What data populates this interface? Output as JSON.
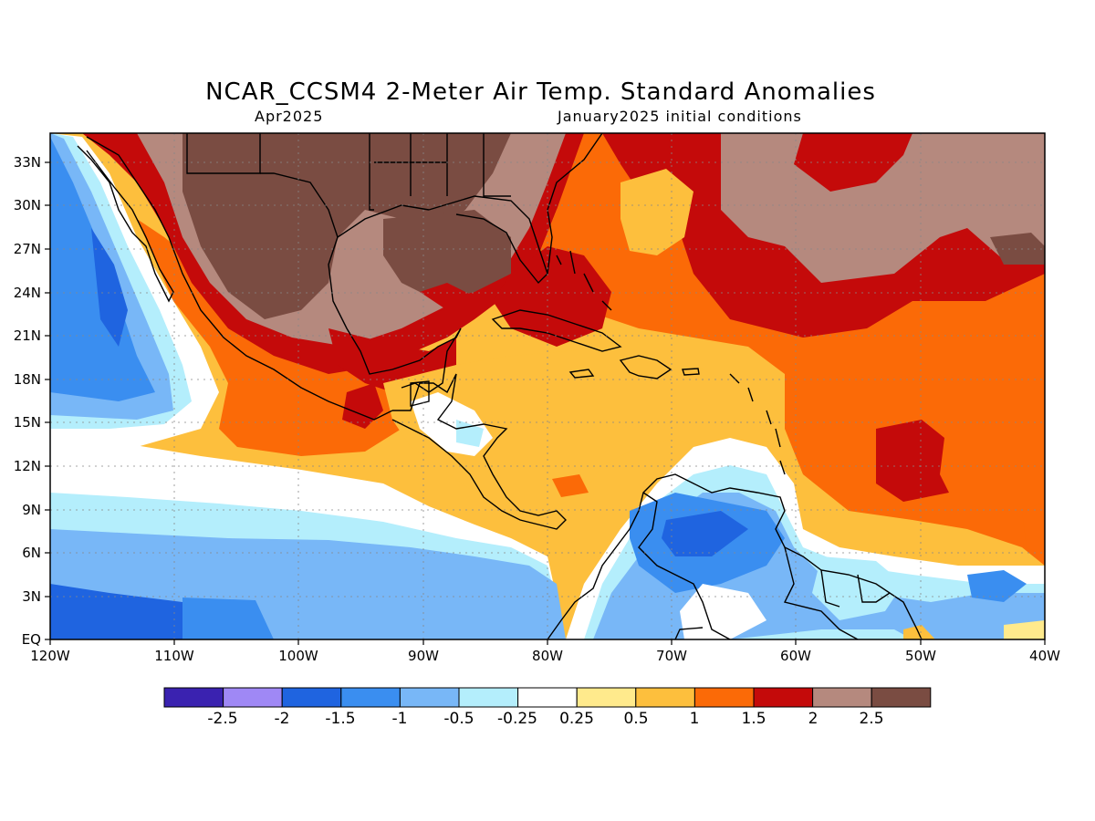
{
  "title": "NCAR_CCSM4 2-Meter Air Temp. Standard Anomalies",
  "subtitle_left": "Apr2025",
  "subtitle_right": "January2025 initial conditions",
  "map": {
    "lon_range": [
      -120,
      -40
    ],
    "lat_range": [
      0,
      35
    ],
    "lon_ticks": [
      "120W",
      "110W",
      "100W",
      "90W",
      "80W",
      "70W",
      "60W",
      "50W",
      "40W"
    ],
    "lat_ticks": [
      "EQ",
      "3N",
      "6N",
      "9N",
      "12N",
      "15N",
      "18N",
      "21N",
      "24N",
      "27N",
      "30N",
      "33N"
    ],
    "grid": true
  },
  "colorbar": {
    "labels": [
      "-2.5",
      "-2",
      "-1.5",
      "-1",
      "-0.5",
      "-0.25",
      "0.25",
      "0.5",
      "1",
      "1.5",
      "2",
      "2.5"
    ],
    "colors": [
      "#3a22b0",
      "#9f88f5",
      "#1f64e0",
      "#3a8ef0",
      "#78b7f7",
      "#b4eefc",
      "#ffffff",
      "#ffea8c",
      "#fdbf3d",
      "#fb6a07",
      "#c40a0a",
      "#b5897e",
      "#7a4c42"
    ]
  }
}
